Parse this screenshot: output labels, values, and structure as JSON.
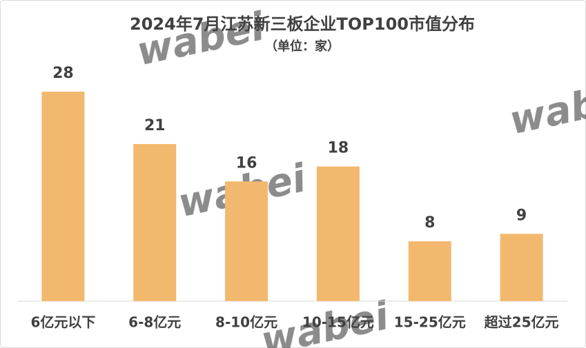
{
  "chart_data": {
    "type": "bar",
    "title": "2024年7月江苏新三板企业TOP100市值分布",
    "subtitle": "（单位：家）",
    "categories": [
      "6亿元以下",
      "6-8亿元",
      "8-10亿元",
      "10-15亿元",
      "15-25亿元",
      "超过25亿元"
    ],
    "values": [
      28,
      21,
      16,
      18,
      8,
      9
    ],
    "color": "#f2b96e"
  }
}
